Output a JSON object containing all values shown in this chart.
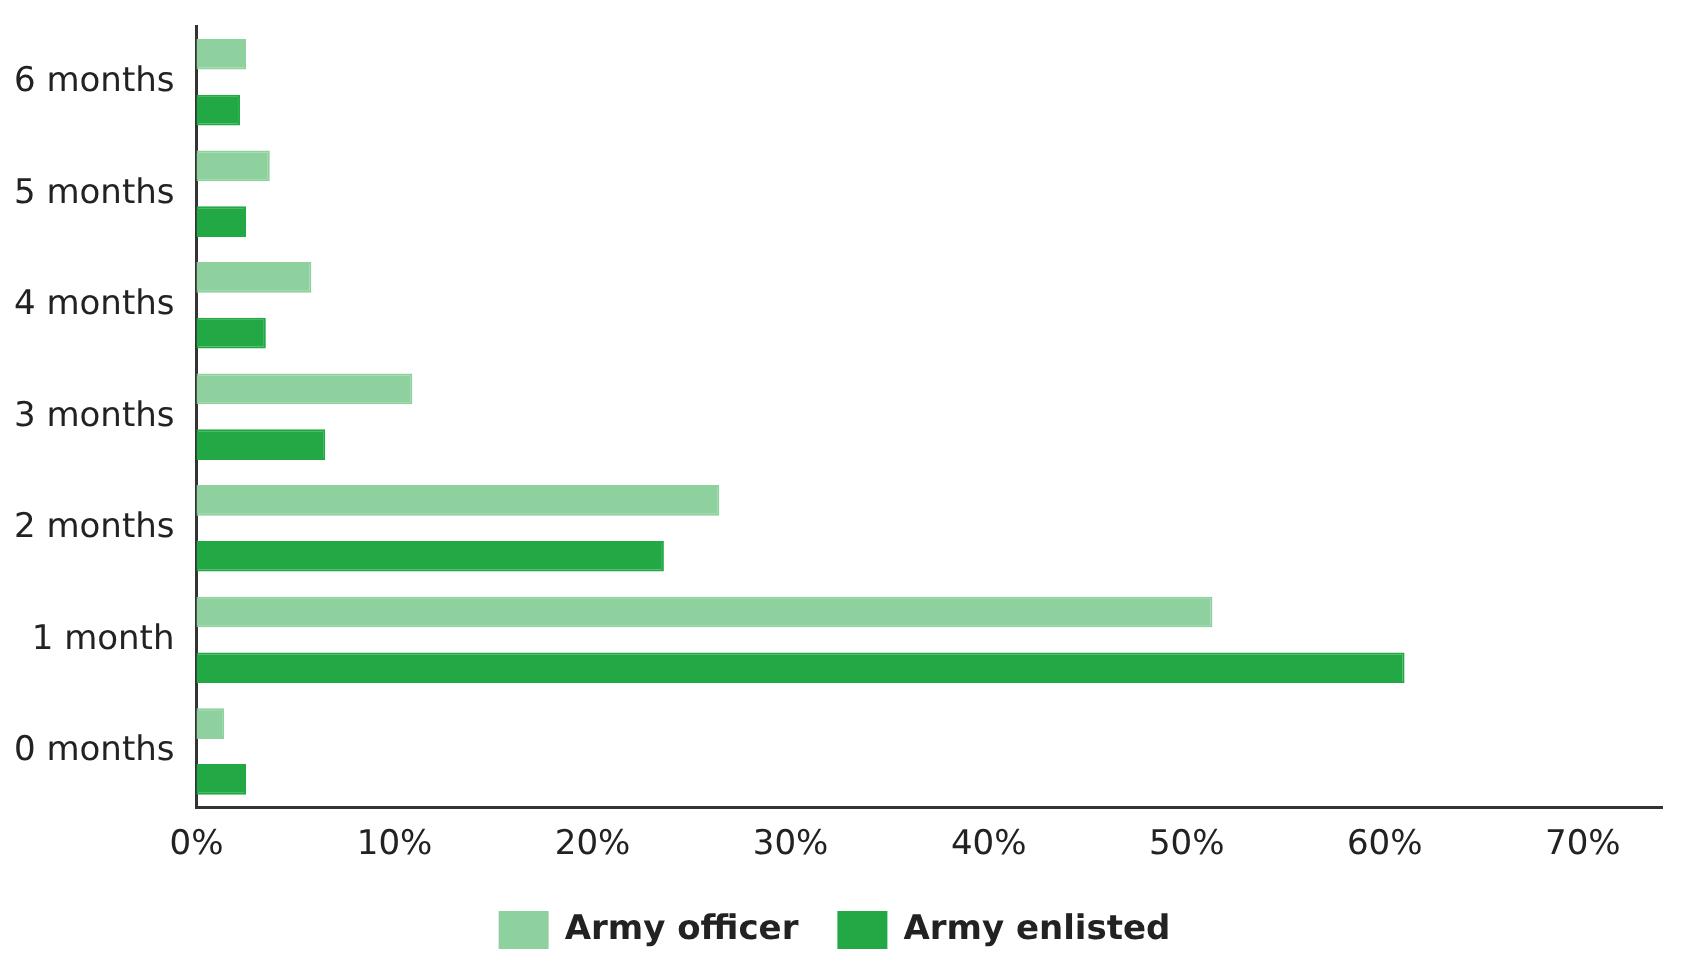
{
  "chart_data": {
    "type": "bar",
    "orientation": "horizontal",
    "categories": [
      "6 months",
      "5 months",
      "4 months",
      "3 months",
      "2 months",
      "1 month",
      "0 months"
    ],
    "series": [
      {
        "name": "Army officer",
        "color": "#8fd19e",
        "values": [
          2.5,
          3.7,
          5.8,
          10.9,
          26.4,
          51.3,
          1.4
        ]
      },
      {
        "name": "Army enlisted",
        "color": "#22a845",
        "values": [
          2.2,
          2.5,
          3.5,
          6.5,
          23.6,
          61.0,
          2.5
        ]
      }
    ],
    "xlim": [
      0,
      74
    ],
    "xticks": [
      {
        "value": 0,
        "label": "0%"
      },
      {
        "value": 10,
        "label": "10%"
      },
      {
        "value": 20,
        "label": "20%"
      },
      {
        "value": 30,
        "label": "30%"
      },
      {
        "value": 40,
        "label": "40%"
      },
      {
        "value": 50,
        "label": "50%"
      },
      {
        "value": 60,
        "label": "60%"
      },
      {
        "value": 70,
        "label": "70%"
      }
    ],
    "grid": false,
    "legend": "bottom"
  }
}
